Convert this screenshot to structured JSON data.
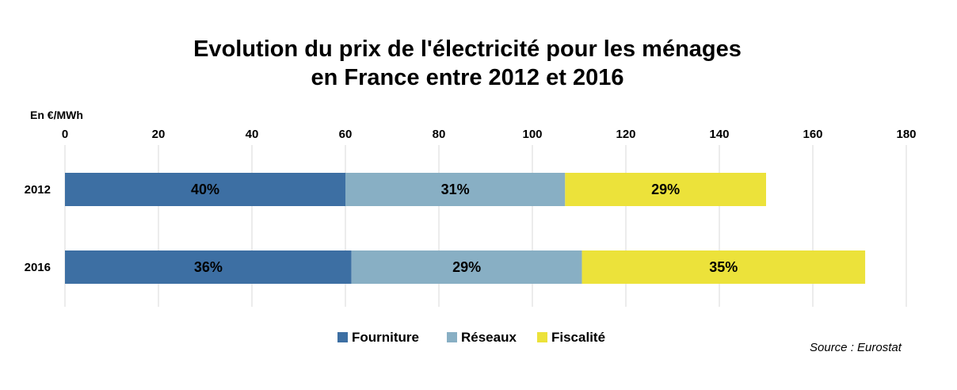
{
  "chart_data": {
    "type": "bar",
    "orientation": "horizontal",
    "stacked": true,
    "title_lines": [
      "Evolution du prix de l'électricité pour les ménages",
      "en France entre 2012 et 2016"
    ],
    "unit_label": "En €/MWh",
    "categories": [
      "2012",
      "2016"
    ],
    "xlim": [
      0,
      180
    ],
    "x_ticks": [
      0,
      20,
      40,
      60,
      80,
      100,
      120,
      140,
      160,
      180
    ],
    "grid": true,
    "legend_position": "bottom",
    "series": [
      {
        "name": "Fourniture",
        "color": "#3d6fa3",
        "values": [
          60,
          61.3
        ],
        "labels": [
          "40%",
          "36%"
        ]
      },
      {
        "name": "Réseaux",
        "color": "#88afc4",
        "values": [
          47,
          49.3
        ],
        "labels": [
          "31%",
          "29%"
        ]
      },
      {
        "name": "Fiscalité",
        "color": "#ece23a",
        "values": [
          43,
          60.6
        ],
        "labels": [
          "29%",
          "35%"
        ]
      }
    ],
    "source": "Source : Eurostat"
  }
}
